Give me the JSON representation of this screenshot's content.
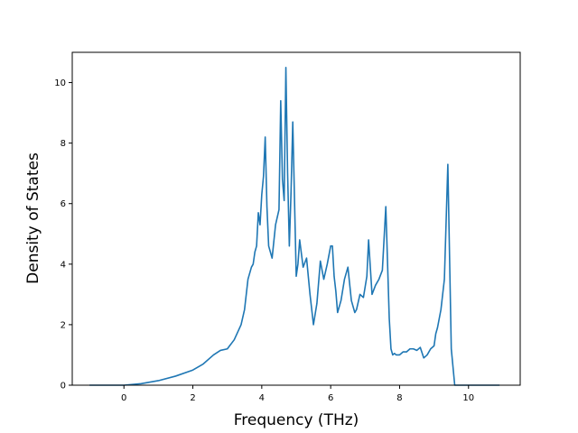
{
  "chart_data": {
    "type": "line",
    "title": "",
    "xlabel": "Frequency (THz)",
    "ylabel": "Density of States",
    "xlim": [
      -1.5,
      11.5
    ],
    "ylim": [
      0,
      11
    ],
    "xticks": [
      0,
      2,
      4,
      6,
      8,
      10
    ],
    "yticks": [
      0,
      2,
      4,
      6,
      8,
      10
    ],
    "grid": false,
    "line_color": "#1f77b4",
    "series": [
      {
        "x": [
          -1.0,
          0.0,
          0.5,
          1.0,
          1.5,
          2.0,
          2.3,
          2.6,
          2.8,
          3.0,
          3.2,
          3.4,
          3.5,
          3.6,
          3.7,
          3.75,
          3.8,
          3.85,
          3.9,
          3.95,
          4.0,
          4.05,
          4.1,
          4.15,
          4.2,
          4.3,
          4.4,
          4.5,
          4.55,
          4.6,
          4.65,
          4.7,
          4.75,
          4.8,
          4.85,
          4.9,
          5.0,
          5.05,
          5.1,
          5.2,
          5.3,
          5.35,
          5.4,
          5.5,
          5.6,
          5.7,
          5.8,
          5.9,
          6.0,
          6.05,
          6.1,
          6.15,
          6.2,
          6.3,
          6.4,
          6.5,
          6.6,
          6.7,
          6.75,
          6.85,
          6.95,
          7.05,
          7.1,
          7.2,
          7.3,
          7.35,
          7.4,
          7.5,
          7.6,
          7.7,
          7.75,
          7.8,
          7.85,
          7.9,
          8.0,
          8.05,
          8.1,
          8.2,
          8.3,
          8.4,
          8.5,
          8.6,
          8.7,
          8.8,
          8.9,
          9.0,
          9.05,
          9.1,
          9.2,
          9.3,
          9.4,
          9.5,
          9.6,
          9.7,
          9.75,
          9.8,
          9.85,
          9.9,
          10.0,
          10.9
        ],
        "y": [
          0,
          0,
          0.05,
          0.15,
          0.3,
          0.5,
          0.7,
          1.0,
          1.15,
          1.2,
          1.5,
          2.0,
          2.5,
          3.5,
          3.9,
          4.0,
          4.4,
          4.6,
          5.7,
          5.3,
          6.3,
          6.9,
          8.2,
          5.9,
          4.6,
          4.2,
          5.3,
          5.8,
          9.4,
          6.8,
          6.1,
          10.5,
          7.0,
          4.6,
          6.4,
          8.7,
          3.6,
          4.0,
          4.8,
          3.9,
          4.2,
          3.6,
          3.0,
          2.0,
          2.7,
          4.1,
          3.5,
          4.0,
          4.6,
          4.6,
          3.6,
          3.1,
          2.4,
          2.8,
          3.5,
          3.9,
          2.8,
          2.4,
          2.5,
          3.0,
          2.9,
          3.6,
          4.8,
          3.0,
          3.3,
          3.4,
          3.5,
          3.8,
          5.9,
          2.2,
          1.2,
          1.0,
          1.05,
          1.0,
          1.0,
          1.05,
          1.1,
          1.1,
          1.2,
          1.2,
          1.15,
          1.25,
          0.9,
          1.0,
          1.2,
          1.3,
          1.7,
          1.9,
          2.5,
          3.5,
          7.3,
          1.2,
          0,
          0,
          0,
          0,
          0,
          0,
          0,
          0
        ]
      }
    ]
  }
}
